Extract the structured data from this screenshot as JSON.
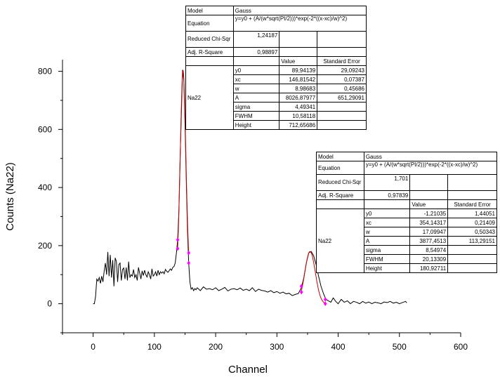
{
  "chart_data": {
    "type": "line",
    "xlabel": "Channel",
    "ylabel": "Counts (Na22)",
    "xlim": [
      -50,
      600
    ],
    "ylim": [
      -100,
      840
    ],
    "x_ticks": [
      0,
      100,
      200,
      300,
      400,
      500,
      600
    ],
    "y_ticks": [
      0,
      200,
      400,
      600,
      800
    ],
    "grid": false,
    "series": [
      {
        "color": "#000000",
        "points": [
          [
            0,
            0
          ],
          [
            2,
            0
          ],
          [
            4,
            25
          ],
          [
            6,
            85
          ],
          [
            8,
            78
          ],
          [
            10,
            90
          ],
          [
            12,
            70
          ],
          [
            14,
            95
          ],
          [
            16,
            75
          ],
          [
            18,
            112
          ],
          [
            20,
            140
          ],
          [
            22,
            100
          ],
          [
            24,
            178
          ],
          [
            26,
            95
          ],
          [
            28,
            168
          ],
          [
            30,
            90
          ],
          [
            32,
            150
          ],
          [
            34,
            60
          ],
          [
            36,
            158
          ],
          [
            38,
            145
          ],
          [
            40,
            75
          ],
          [
            42,
            135
          ],
          [
            44,
            140
          ],
          [
            46,
            80
          ],
          [
            48,
            118
          ],
          [
            50,
            123
          ],
          [
            52,
            85
          ],
          [
            54,
            125
          ],
          [
            56,
            80
          ],
          [
            58,
            145
          ],
          [
            60,
            90
          ],
          [
            62,
            100
          ],
          [
            64,
            95
          ],
          [
            66,
            118
          ],
          [
            68,
            90
          ],
          [
            70,
            100
          ],
          [
            72,
            80
          ],
          [
            74,
            125
          ],
          [
            76,
            105
          ],
          [
            78,
            85
          ],
          [
            80,
            113
          ],
          [
            82,
            97
          ],
          [
            84,
            115
          ],
          [
            86,
            100
          ],
          [
            88,
            92
          ],
          [
            90,
            110
          ],
          [
            92,
            100
          ],
          [
            94,
            85
          ],
          [
            96,
            120
          ],
          [
            98,
            95
          ],
          [
            100,
            100
          ],
          [
            102,
            110
          ],
          [
            104,
            95
          ],
          [
            106,
            115
          ],
          [
            108,
            100
          ],
          [
            110,
            110
          ],
          [
            112,
            105
          ],
          [
            114,
            110
          ],
          [
            116,
            103
          ],
          [
            118,
            118
          ],
          [
            120,
            112
          ],
          [
            122,
            108
          ],
          [
            124,
            113
          ],
          [
            126,
            120
          ],
          [
            128,
            115
          ],
          [
            130,
            125
          ],
          [
            132,
            128
          ],
          [
            134,
            140
          ],
          [
            136,
            175
          ],
          [
            138,
            220
          ],
          [
            140,
            320
          ],
          [
            142,
            500
          ],
          [
            144,
            650
          ],
          [
            146,
            805
          ],
          [
            148,
            770
          ],
          [
            150,
            620
          ],
          [
            152,
            430
          ],
          [
            154,
            255
          ],
          [
            156,
            140
          ],
          [
            158,
            75
          ],
          [
            160,
            50
          ],
          [
            162,
            55
          ],
          [
            164,
            45
          ],
          [
            166,
            52
          ],
          [
            168,
            48
          ],
          [
            170,
            55
          ],
          [
            175,
            45
          ],
          [
            180,
            58
          ],
          [
            185,
            50
          ],
          [
            190,
            52
          ],
          [
            195,
            48
          ],
          [
            200,
            55
          ],
          [
            205,
            45
          ],
          [
            210,
            50
          ],
          [
            215,
            56
          ],
          [
            220,
            44
          ],
          [
            225,
            50
          ],
          [
            230,
            52
          ],
          [
            235,
            48
          ],
          [
            240,
            54
          ],
          [
            245,
            46
          ],
          [
            250,
            50
          ],
          [
            255,
            45
          ],
          [
            260,
            55
          ],
          [
            265,
            42
          ],
          [
            270,
            50
          ],
          [
            275,
            46
          ],
          [
            280,
            44
          ],
          [
            285,
            40
          ],
          [
            290,
            45
          ],
          [
            295,
            38
          ],
          [
            300,
            42
          ],
          [
            305,
            36
          ],
          [
            310,
            40
          ],
          [
            315,
            34
          ],
          [
            320,
            36
          ],
          [
            325,
            28
          ],
          [
            330,
            32
          ],
          [
            335,
            35
          ],
          [
            340,
            55
          ],
          [
            344,
            90
          ],
          [
            348,
            140
          ],
          [
            352,
            175
          ],
          [
            356,
            180
          ],
          [
            360,
            165
          ],
          [
            364,
            135
          ],
          [
            368,
            95
          ],
          [
            372,
            60
          ],
          [
            376,
            35
          ],
          [
            380,
            15
          ],
          [
            384,
            10
          ],
          [
            388,
            5
          ],
          [
            392,
            20
          ],
          [
            396,
            8
          ],
          [
            400,
            0
          ],
          [
            405,
            15
          ],
          [
            410,
            5
          ],
          [
            415,
            10
          ],
          [
            420,
            0
          ],
          [
            425,
            8
          ],
          [
            430,
            5
          ],
          [
            435,
            0
          ],
          [
            440,
            8
          ],
          [
            445,
            2
          ],
          [
            450,
            6
          ],
          [
            455,
            0
          ],
          [
            460,
            5
          ],
          [
            465,
            3
          ],
          [
            470,
            0
          ],
          [
            475,
            6
          ],
          [
            480,
            4
          ],
          [
            485,
            8
          ],
          [
            490,
            2
          ],
          [
            495,
            5
          ],
          [
            500,
            0
          ],
          [
            505,
            4
          ],
          [
            510,
            8
          ],
          [
            512,
            3
          ]
        ]
      },
      {
        "color": "#cc0000",
        "fit": {
          "y0": 89.94139,
          "xc": 146.81542,
          "w": 8.98683,
          "A": 8026.87977,
          "range": [
            138,
            156
          ]
        }
      },
      {
        "color": "#cc0000",
        "fit": {
          "y0": -1.21035,
          "xc": 354.14317,
          "w": 17.09947,
          "A": 3877.4513,
          "range": [
            340,
            379
          ]
        }
      }
    ],
    "markers": {
      "color": "#ff00ff",
      "points": [
        [
          138,
          190
        ],
        [
          138,
          220
        ],
        [
          156,
          140
        ],
        [
          156,
          175
        ],
        [
          340,
          40
        ],
        [
          340,
          60
        ],
        [
          379,
          0
        ],
        [
          379,
          15
        ]
      ]
    },
    "fit_tables": [
      {
        "model_label": "Model",
        "model": "Gauss",
        "equation_label": "Equation",
        "equation": "y=y0 + (A/(w*sqrt(PI/2)))*exp(-2*((x-xc)/w)^2)",
        "chisqr_label": "Reduced Chi-Sqr",
        "chisqr": "1,24187",
        "r2_label": "Adj. R-Square",
        "r2": "0,98897",
        "value_header": "Value",
        "error_header": "Standard Error",
        "dataset": "Na22",
        "params": [
          {
            "name": "y0",
            "value": "89,94139",
            "error": "29,09243"
          },
          {
            "name": "xc",
            "value": "146,81542",
            "error": "0,07387"
          },
          {
            "name": "w",
            "value": "8,98683",
            "error": "0,45686"
          },
          {
            "name": "A",
            "value": "8026,87977",
            "error": "651,29091"
          },
          {
            "name": "sigma",
            "value": "4,49341",
            "error": ""
          },
          {
            "name": "FWHM",
            "value": "10,58118",
            "error": ""
          },
          {
            "name": "Height",
            "value": "712,65686",
            "error": ""
          }
        ]
      },
      {
        "model_label": "Model",
        "model": "Gauss",
        "equation_label": "Equation",
        "equation": "y=y0 + (A/(w*sqrt(PI/2)))*exp(-2*((x-xc)/w)^2)",
        "chisqr_label": "Reduced Chi-Sqr",
        "chisqr": "1,701",
        "r2_label": "Adj. R-Square",
        "r2": "0,97839",
        "value_header": "Value",
        "error_header": "Standard Error",
        "dataset": "Na22",
        "params": [
          {
            "name": "y0",
            "value": "-1,21035",
            "error": "1,44051"
          },
          {
            "name": "xc",
            "value": "354,14317",
            "error": "0,21409"
          },
          {
            "name": "w",
            "value": "17,09947",
            "error": "0,50343"
          },
          {
            "name": "A",
            "value": "3877,4513",
            "error": "113,29151"
          },
          {
            "name": "sigma",
            "value": "8,54974",
            "error": ""
          },
          {
            "name": "FWHM",
            "value": "20,13309",
            "error": ""
          },
          {
            "name": "Height",
            "value": "180,92711",
            "error": ""
          }
        ]
      }
    ]
  }
}
